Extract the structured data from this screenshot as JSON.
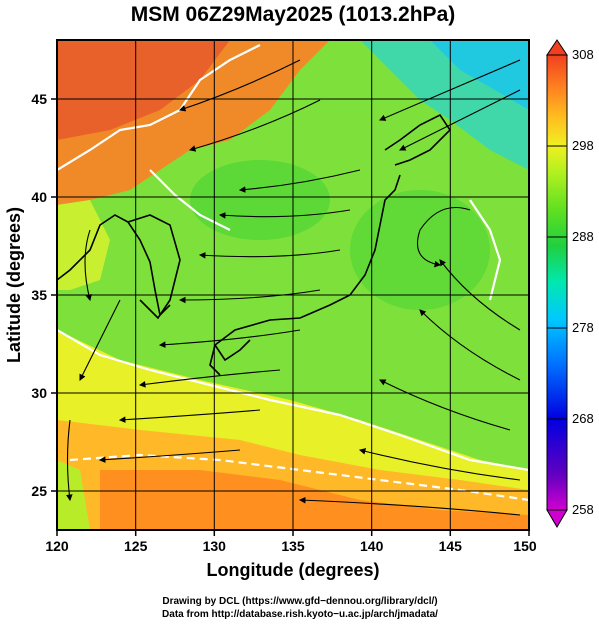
{
  "title": "MSM 06Z29May2025 (1013.2hPa)",
  "map": {
    "xlabel": "Longitude (degrees)",
    "ylabel": "Latitude  (degrees)",
    "lon_range": [
      120,
      150
    ],
    "lat_range": [
      22.5,
      47.5
    ],
    "lon_ticks": [
      "120",
      "125",
      "130",
      "135",
      "140",
      "145",
      "150"
    ],
    "lat_ticks": [
      "25",
      "30",
      "35",
      "40",
      "45"
    ],
    "field": "temperature (K) shaded with wind streamlines"
  },
  "colorbar": {
    "range": [
      258,
      308
    ],
    "ticks": [
      "308",
      "298",
      "288",
      "278",
      "268",
      "258"
    ],
    "colors": [
      "#d000d0",
      "#6000c0",
      "#0000e0",
      "#0070ff",
      "#00c8ff",
      "#00e8b0",
      "#20d040",
      "#60e020",
      "#b0f020",
      "#f0f020",
      "#ffc020",
      "#ff8020",
      "#f04020"
    ]
  },
  "credits": {
    "line1": "Drawing by DCL (https://www.gfd−dennou.org/library/dcl/)",
    "line2": "Data from http://database.rish.kyoto−u.ac.jp/arch/jmadata/"
  }
}
